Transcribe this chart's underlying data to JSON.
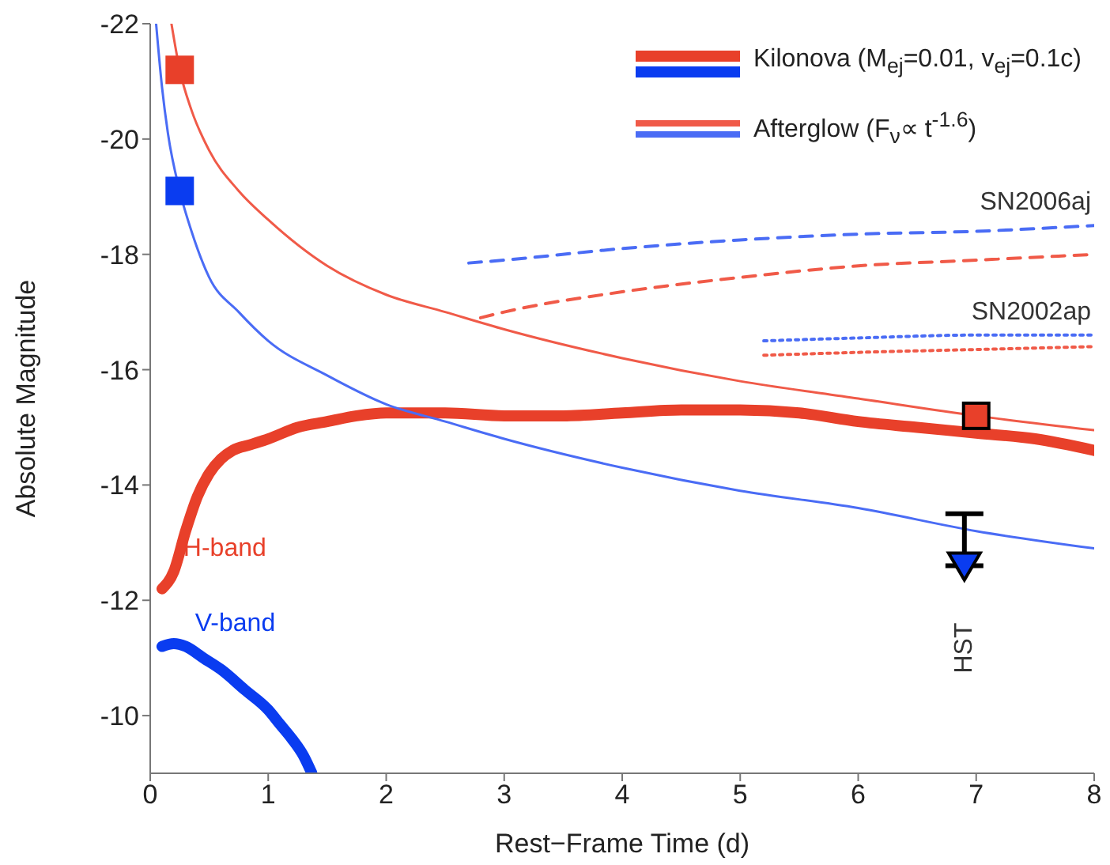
{
  "chart_data": {
    "type": "line",
    "xlabel": "Rest−Frame Time  (d)",
    "ylabel": "Absolute Magnitude",
    "xlim": [
      0,
      8
    ],
    "xticks": [
      0,
      1,
      2,
      3,
      4,
      5,
      6,
      7,
      8
    ],
    "ylim": [
      -9,
      -22
    ],
    "yticks": [
      -10,
      -12,
      -14,
      -16,
      -18,
      -20,
      -22
    ],
    "legend": "top right",
    "grid": false,
    "series": [
      {
        "name": "Kilonova (M$_{ej}$=0.01, v$_{ej}$=0.1c)",
        "color": "#e8402a",
        "line_style": "solid",
        "x": [
          0.1,
          0.2,
          0.3,
          0.4,
          0.5,
          0.6,
          0.7,
          0.85,
          1.0,
          1.25,
          1.5,
          1.75,
          2,
          2.5,
          3,
          3.5,
          4,
          4.5,
          5,
          5.5,
          6,
          6.5,
          7,
          7.5,
          8
        ],
        "values": [
          -12.2,
          -12.5,
          -13.2,
          -13.8,
          -14.2,
          -14.45,
          -14.6,
          -14.7,
          -14.8,
          -15.0,
          -15.1,
          -15.2,
          -15.25,
          -15.25,
          -15.2,
          -15.2,
          -15.25,
          -15.3,
          -15.3,
          -15.25,
          -15.1,
          -15.0,
          -14.9,
          -14.8,
          -14.6
        ]
      },
      {
        "color": "#0a3cf0",
        "line_style": "solid",
        "x": [
          0.1,
          0.2,
          0.3,
          0.45,
          0.6,
          0.8,
          1.0,
          1.1,
          1.2,
          1.3,
          1.37
        ],
        "values": [
          -11.2,
          -11.25,
          -11.2,
          -11.0,
          -10.8,
          -10.45,
          -10.1,
          -9.85,
          -9.6,
          -9.3,
          -9.0
        ]
      },
      {
        "name": "Afterglow (F$_{ν}$∝ t$^{-1.6}$)",
        "color": "#f05a48",
        "line_style": "solid",
        "x": [
          0.18,
          0.25,
          0.35,
          0.5,
          0.75,
          1,
          1.5,
          2,
          2.5,
          3,
          4,
          5,
          6,
          7,
          8
        ],
        "values": [
          -22,
          -21.2,
          -20.5,
          -19.8,
          -19.1,
          -18.6,
          -17.8,
          -17.3,
          -17.0,
          -16.7,
          -16.2,
          -15.8,
          -15.5,
          -15.2,
          -14.95
        ]
      },
      {
        "color": "#4a6cf5",
        "line_style": "solid",
        "x": [
          0.05,
          0.1,
          0.15,
          0.25,
          0.35,
          0.5,
          0.75,
          1,
          1.5,
          2,
          2.5,
          3,
          4,
          5,
          6,
          7,
          8
        ],
        "values": [
          -22,
          -20.9,
          -20.1,
          -19.1,
          -18.4,
          -17.6,
          -17.0,
          -16.5,
          -15.9,
          -15.4,
          -15.1,
          -14.8,
          -14.3,
          -13.9,
          -13.6,
          -13.2,
          -12.9
        ]
      },
      {
        "color": "#4a6cf5",
        "line_style": "dashed",
        "x": [
          2.7,
          3,
          4,
          5,
          6,
          7,
          8
        ],
        "values": [
          -17.85,
          -17.9,
          -18.1,
          -18.25,
          -18.35,
          -18.4,
          -18.5
        ]
      },
      {
        "color": "#f05a48",
        "line_style": "dashed",
        "x": [
          2.8,
          3,
          4,
          5,
          6,
          7,
          8
        ],
        "values": [
          -16.9,
          -17.0,
          -17.35,
          -17.6,
          -17.8,
          -17.9,
          -18.0
        ]
      },
      {
        "color": "#4a6cf5",
        "line_style": "dotted",
        "x": [
          5.2,
          6,
          7,
          8
        ],
        "values": [
          -16.5,
          -16.55,
          -16.6,
          -16.6
        ]
      },
      {
        "color": "#f05a48",
        "line_style": "dotted",
        "x": [
          5.2,
          6,
          7,
          8
        ],
        "values": [
          -16.25,
          -16.3,
          -16.35,
          -16.4
        ]
      },
      {
        "type": "scatter",
        "marker": "square",
        "color": "#e8402a",
        "x": [
          0.25,
          7.0
        ],
        "values": [
          -21.2,
          -15.2
        ]
      },
      {
        "type": "scatter",
        "marker": "square",
        "color": "#0a3cf0",
        "x": [
          0.25
        ],
        "values": [
          -19.1
        ]
      },
      {
        "type": "scatter",
        "marker": "triangle",
        "color": "#0a3cf0",
        "x": [
          6.9
        ],
        "values": [
          -12.6
        ],
        "errors": [
          [
            -13.5,
            -12.6
          ]
        ]
      }
    ],
    "annotations": [
      {
        "text": "H-band",
        "x": 0.2,
        "y": -12.5
      },
      {
        "text": "V-band",
        "x": 0.3,
        "y": -11.2
      },
      {
        "text": "SN2006aj",
        "x": 8,
        "y": -18.5
      },
      {
        "text": "SN2002ap",
        "x": 8,
        "y": -16.6
      },
      {
        "text": "HST",
        "x": 6.9,
        "y": -12.6
      }
    ]
  }
}
